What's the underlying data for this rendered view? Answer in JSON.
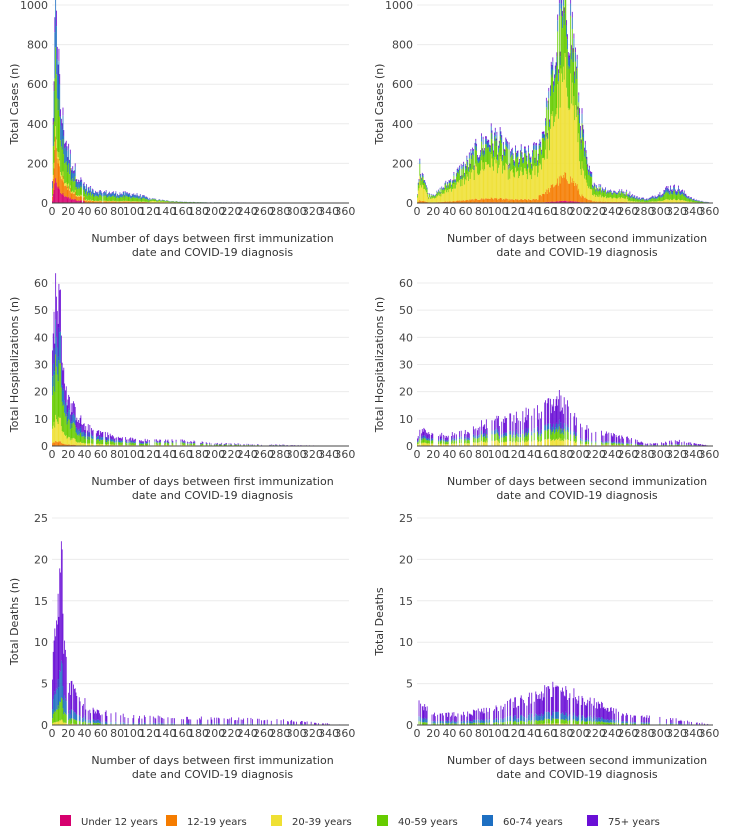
{
  "chart_data": [
    {
      "type": "bar",
      "stacked": true,
      "ylabel": "Total Cases (n)",
      "xlabel_line1": "Number of days between first immunization",
      "xlabel_line2": "date and COVID-19 diagnosis",
      "ylim": [
        0,
        1000
      ],
      "yticks": [
        0,
        200,
        400,
        600,
        800,
        1000
      ],
      "xlim": [
        0,
        365
      ],
      "xticks": [
        0,
        20,
        40,
        60,
        80,
        100,
        120,
        140,
        160,
        180,
        200,
        220,
        240,
        260,
        280,
        300,
        320,
        340,
        360
      ],
      "profile": [
        [
          0,
          10
        ],
        [
          5,
          1000
        ],
        [
          10,
          440
        ],
        [
          15,
          330
        ],
        [
          20,
          230
        ],
        [
          28,
          150
        ],
        [
          35,
          100
        ],
        [
          45,
          70
        ],
        [
          60,
          55
        ],
        [
          80,
          48
        ],
        [
          100,
          45
        ],
        [
          110,
          35
        ],
        [
          120,
          22
        ],
        [
          140,
          12
        ],
        [
          160,
          6
        ],
        [
          180,
          4
        ],
        [
          200,
          3
        ],
        [
          260,
          2
        ],
        [
          280,
          1
        ],
        [
          365,
          0
        ]
      ],
      "shares": [
        [
          0,
          0.12,
          0.2,
          0.05,
          0.38,
          0.28,
          0.09,
          0.2
        ],
        [
          40,
          0.03,
          0.12,
          0.05,
          0.45,
          0.3,
          0.07,
          0.03
        ],
        [
          120,
          0,
          0.04,
          0.4,
          0.4,
          0.12,
          0.04,
          0
        ]
      ]
    },
    {
      "type": "bar",
      "stacked": true,
      "ylabel": "Total Cases (n)",
      "xlabel_line1": "Number of days between second immunization",
      "xlabel_line2": "date and COVID-19 diagnosis",
      "ylim": [
        0,
        1000
      ],
      "yticks": [
        0,
        200,
        400,
        600,
        800,
        1000
      ],
      "xlim": [
        0,
        365
      ],
      "xticks": [
        0,
        20,
        40,
        60,
        80,
        100,
        120,
        140,
        160,
        180,
        200,
        220,
        240,
        260,
        280,
        300,
        320,
        340,
        360
      ],
      "profile": [
        [
          0,
          10
        ],
        [
          3,
          185
        ],
        [
          8,
          150
        ],
        [
          14,
          40
        ],
        [
          25,
          50
        ],
        [
          40,
          110
        ],
        [
          60,
          190
        ],
        [
          75,
          270
        ],
        [
          88,
          330
        ],
        [
          100,
          320
        ],
        [
          110,
          260
        ],
        [
          118,
          230
        ],
        [
          128,
          240
        ],
        [
          140,
          230
        ],
        [
          150,
          280
        ],
        [
          162,
          480
        ],
        [
          172,
          780
        ],
        [
          180,
          960
        ],
        [
          185,
          990
        ],
        [
          192,
          860
        ],
        [
          200,
          500
        ],
        [
          210,
          180
        ],
        [
          220,
          90
        ],
        [
          240,
          60
        ],
        [
          260,
          55
        ],
        [
          270,
          30
        ],
        [
          285,
          20
        ],
        [
          300,
          50
        ],
        [
          310,
          80
        ],
        [
          322,
          75
        ],
        [
          330,
          50
        ],
        [
          340,
          20
        ],
        [
          350,
          10
        ],
        [
          365,
          0
        ]
      ],
      "shares": [
        [
          0,
          0.01,
          0.06,
          0.55,
          0.27,
          0.08,
          0.04,
          0
        ],
        [
          150,
          0.01,
          0.12,
          0.5,
          0.28,
          0.06,
          0.03,
          0
        ],
        [
          200,
          0.01,
          0.08,
          0.35,
          0.4,
          0.1,
          0.06,
          0
        ],
        [
          260,
          0,
          0.03,
          0.2,
          0.45,
          0.2,
          0.12,
          0
        ]
      ]
    },
    {
      "type": "bar",
      "stacked": true,
      "ylabel": "Total Hospitalizations (n)",
      "xlabel_line1": "Number of days between first immunization",
      "xlabel_line2": "date and COVID-19 diagnosis",
      "ylim": [
        0,
        60
      ],
      "yticks": [
        0,
        10,
        20,
        30,
        40,
        50,
        60
      ],
      "xlim": [
        0,
        365
      ],
      "xticks": [
        0,
        20,
        40,
        60,
        80,
        100,
        120,
        140,
        160,
        180,
        200,
        220,
        240,
        260,
        280,
        300,
        320,
        340,
        360
      ],
      "profile": [
        [
          0,
          30
        ],
        [
          5,
          58
        ],
        [
          10,
          50
        ],
        [
          15,
          26
        ],
        [
          20,
          16
        ],
        [
          30,
          12
        ],
        [
          40,
          7
        ],
        [
          60,
          5
        ],
        [
          80,
          3
        ],
        [
          120,
          2
        ],
        [
          160,
          2
        ],
        [
          200,
          1
        ],
        [
          250,
          0.6
        ],
        [
          300,
          0.3
        ],
        [
          365,
          0
        ]
      ],
      "shares": [
        [
          0,
          0,
          0.03,
          0.15,
          0.35,
          0.2,
          0.27,
          0.25
        ],
        [
          30,
          0,
          0.02,
          0.12,
          0.3,
          0.2,
          0.36,
          0.3
        ],
        [
          120,
          0,
          0,
          0.2,
          0.35,
          0.15,
          0.3,
          0.5
        ]
      ]
    },
    {
      "type": "bar",
      "stacked": true,
      "ylabel": "Total Hospitalizations (n)",
      "xlabel_line1": "Number of days between second immunization",
      "xlabel_line2": "date and COVID-19 diagnosis",
      "ylim": [
        0,
        60
      ],
      "yticks": [
        0,
        10,
        20,
        30,
        40,
        50,
        60
      ],
      "xlim": [
        0,
        365
      ],
      "xticks": [
        0,
        20,
        40,
        60,
        80,
        100,
        120,
        140,
        160,
        180,
        200,
        220,
        240,
        260,
        280,
        300,
        320,
        340,
        360
      ],
      "profile": [
        [
          0,
          2
        ],
        [
          5,
          6
        ],
        [
          20,
          4
        ],
        [
          40,
          4
        ],
        [
          60,
          5
        ],
        [
          80,
          8
        ],
        [
          100,
          9
        ],
        [
          120,
          10
        ],
        [
          140,
          12
        ],
        [
          160,
          14
        ],
        [
          175,
          17
        ],
        [
          185,
          14
        ],
        [
          200,
          8
        ],
        [
          220,
          5
        ],
        [
          240,
          4
        ],
        [
          260,
          3
        ],
        [
          280,
          1
        ],
        [
          300,
          1
        ],
        [
          320,
          2
        ],
        [
          340,
          1
        ],
        [
          365,
          0
        ]
      ],
      "shares": [
        [
          0,
          0,
          0,
          0.2,
          0.25,
          0.15,
          0.4,
          0.35
        ],
        [
          100,
          0,
          0,
          0.15,
          0.2,
          0.12,
          0.53,
          0.4
        ],
        [
          200,
          0,
          0,
          0.1,
          0.15,
          0.1,
          0.65,
          0.5
        ]
      ]
    },
    {
      "type": "bar",
      "stacked": true,
      "ylabel": "Total Deaths (n)",
      "xlabel_line1": "Number of days between first immunization",
      "xlabel_line2": "date and COVID-19 diagnosis",
      "ylim": [
        0,
        25
      ],
      "yticks": [
        0,
        5,
        10,
        15,
        20,
        25
      ],
      "xlim": [
        0,
        365
      ],
      "xticks": [
        0,
        20,
        40,
        60,
        80,
        100,
        120,
        140,
        160,
        180,
        200,
        220,
        240,
        260,
        280,
        300,
        320,
        340,
        360
      ],
      "profile": [
        [
          0,
          6
        ],
        [
          5,
          14
        ],
        [
          12,
          20
        ],
        [
          15,
          9
        ],
        [
          20,
          5
        ],
        [
          30,
          4
        ],
        [
          45,
          2
        ],
        [
          60,
          1.5
        ],
        [
          100,
          1
        ],
        [
          200,
          0.8
        ],
        [
          280,
          0.6
        ],
        [
          365,
          0
        ]
      ],
      "shares": [
        [
          0,
          0,
          0,
          0.03,
          0.12,
          0.2,
          0.65,
          0.5
        ],
        [
          60,
          0,
          0,
          0,
          0.08,
          0.17,
          0.75,
          0.75
        ]
      ]
    },
    {
      "type": "bar",
      "stacked": true,
      "ylabel": "Total Deaths",
      "xlabel_line1": "Number of days between second immunization",
      "xlabel_line2": "date and COVID-19 diagnosis",
      "ylim": [
        0,
        25
      ],
      "yticks": [
        0,
        5,
        10,
        15,
        20,
        25
      ],
      "xlim": [
        0,
        365
      ],
      "xticks": [
        0,
        20,
        40,
        60,
        80,
        100,
        120,
        140,
        160,
        180,
        200,
        220,
        240,
        260,
        280,
        300,
        320,
        340,
        360
      ],
      "profile": [
        [
          0,
          3
        ],
        [
          20,
          1.2
        ],
        [
          60,
          1.3
        ],
        [
          100,
          2.2
        ],
        [
          140,
          3.2
        ],
        [
          175,
          4.5
        ],
        [
          200,
          3.3
        ],
        [
          230,
          2.2
        ],
        [
          260,
          1.2
        ],
        [
          300,
          0.8
        ],
        [
          330,
          0.6
        ],
        [
          365,
          0
        ]
      ],
      "shares": [
        [
          0,
          0,
          0,
          0.03,
          0.12,
          0.2,
          0.65,
          0.45
        ],
        [
          150,
          0,
          0,
          0.04,
          0.12,
          0.18,
          0.66,
          0.35
        ],
        [
          260,
          0,
          0,
          0.05,
          0.1,
          0.15,
          0.7,
          0.7
        ]
      ]
    }
  ],
  "legend": {
    "items": [
      {
        "label": "Under 12 years",
        "color": "#d6006e"
      },
      {
        "label": "12-19 years",
        "color": "#f57c00"
      },
      {
        "label": "20-39 years",
        "color": "#efe033"
      },
      {
        "label": "40-59 years",
        "color": "#66cc00"
      },
      {
        "label": "60-74 years",
        "color": "#1d6fc2"
      },
      {
        "label": "75+ years",
        "color": "#6a0fd6"
      }
    ]
  }
}
